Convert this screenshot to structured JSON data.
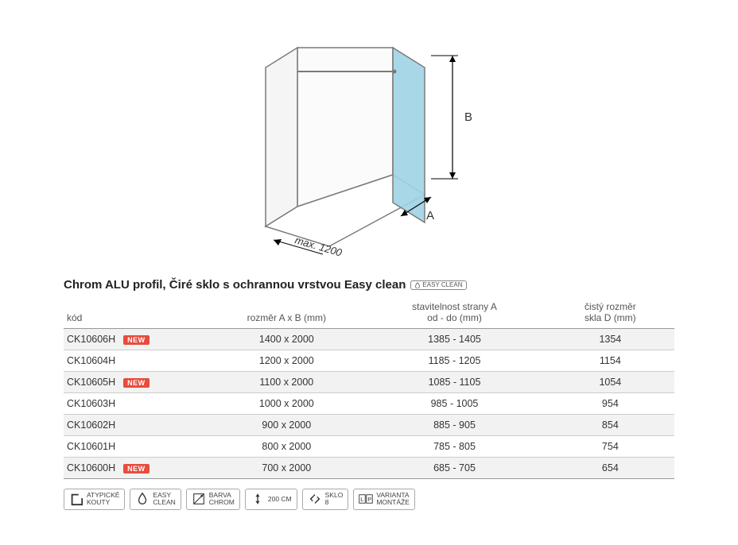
{
  "diagram": {
    "depth_label": "max. 1200",
    "width_label": "A",
    "height_label": "B",
    "glass_color": "#9fd4e6",
    "wall_fill": "#ffffff",
    "stroke": "#7a7a7a",
    "stroke_width": 1.5
  },
  "title": "Chrom ALU profil, Čiré sklo s ochrannou vrstvou Easy clean",
  "easy_clean_badge": "EASY CLEAN",
  "new_badge_label": "NEW",
  "table": {
    "headers": {
      "code": "kód",
      "dim": "rozměr A x B (mm)",
      "adj_line1": "stavitelnost strany A",
      "adj_line2": "od - do (mm)",
      "net_line1": "čistý rozměr",
      "net_line2": "skla D (mm)"
    },
    "rows": [
      {
        "code": "CK10606H",
        "new": true,
        "dim": "1400 x 2000",
        "adj": "1385 - 1405",
        "net": "1354"
      },
      {
        "code": "CK10604H",
        "new": false,
        "dim": "1200 x 2000",
        "adj": "1185 - 1205",
        "net": "1154"
      },
      {
        "code": "CK10605H",
        "new": true,
        "dim": "1100 x 2000",
        "adj": "1085 - 1105",
        "net": "1054"
      },
      {
        "code": "CK10603H",
        "new": false,
        "dim": "1000 x 2000",
        "adj": "985 - 1005",
        "net": "954"
      },
      {
        "code": "CK10602H",
        "new": false,
        "dim": "900 x 2000",
        "adj": "885 - 905",
        "net": "854"
      },
      {
        "code": "CK10601H",
        "new": false,
        "dim": "800 x 2000",
        "adj": "785 - 805",
        "net": "754"
      },
      {
        "code": "CK10600H",
        "new": true,
        "dim": "700 x 2000",
        "adj": "685 - 705",
        "net": "654"
      }
    ]
  },
  "features": [
    {
      "icon": "corner",
      "line1": "ATYPICKÉ",
      "line2": "KOUTY"
    },
    {
      "icon": "drop",
      "line1": "EASY",
      "line2": "CLEAN"
    },
    {
      "icon": "chrome",
      "line1": "BARVA",
      "line2": "CHROM"
    },
    {
      "icon": "height",
      "line1": "200 CM",
      "line2": ""
    },
    {
      "icon": "glass8",
      "line1": "SKLO",
      "line2": "8"
    },
    {
      "icon": "lp",
      "line1": "VARIANTA",
      "line2": "MONTÁŽE"
    }
  ]
}
